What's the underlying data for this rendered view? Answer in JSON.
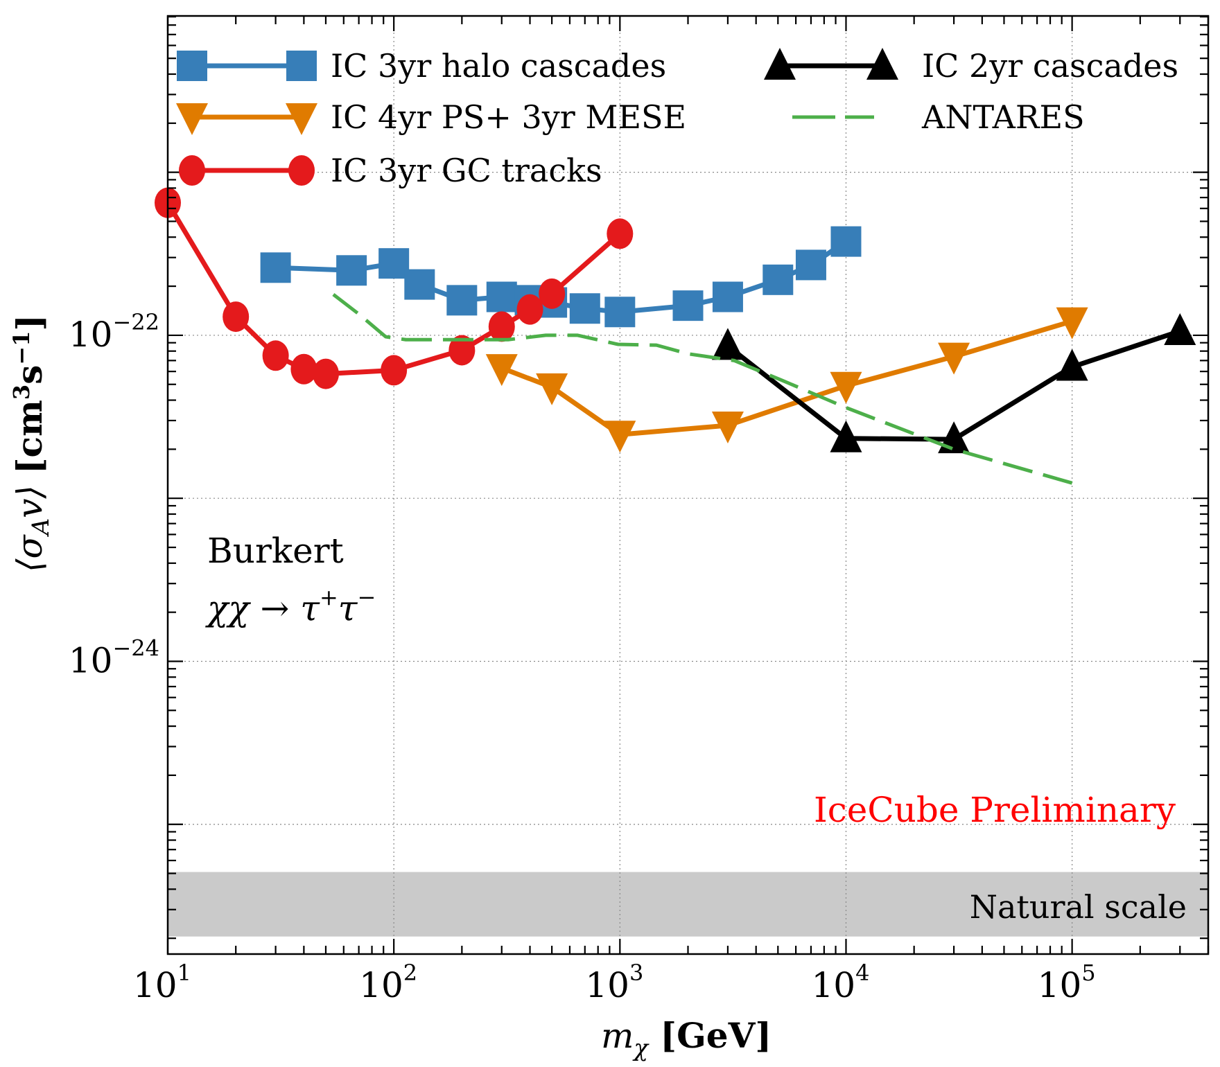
{
  "chart_data": {
    "type": "line",
    "title": "",
    "xlabel": "m_χ [GeV]",
    "xlabel_parts": {
      "var": "m",
      "sub": "χ",
      "unit": " [GeV]"
    },
    "ylabel": "⟨σ_A v⟩ [cm³s⁻¹]",
    "ylabel_parts": {
      "open": "⟨σ",
      "sub": "A",
      "mid": "v⟩ ",
      "unit": "[cm",
      "unit_sup1": "3",
      "unit_mid": "s",
      "unit_sup2": "−1",
      "close": "]"
    },
    "xscale": "log",
    "yscale": "log",
    "xlim": [
      10,
      400000
    ],
    "ylim": [
      1.6e-26,
      9.1e-21
    ],
    "grid": true,
    "x_ticks": [
      {
        "value": 10,
        "base": "10",
        "exp": "1"
      },
      {
        "value": 100,
        "base": "10",
        "exp": "2"
      },
      {
        "value": 1000,
        "base": "10",
        "exp": "3"
      },
      {
        "value": 10000,
        "base": "10",
        "exp": "4"
      },
      {
        "value": 100000,
        "base": "10",
        "exp": "5"
      }
    ],
    "y_ticks": [
      {
        "value": 1e-22,
        "base": "10",
        "exp": "−22"
      },
      {
        "value": 1e-24,
        "base": "10",
        "exp": "−24"
      }
    ],
    "y_grid_values": [
      1e-21,
      1e-22,
      1e-23,
      1e-24,
      1e-25
    ],
    "x_grid_values": [
      100,
      1000,
      10000,
      100000
    ],
    "legend": {
      "placement": "top",
      "columns": 2
    },
    "series": [
      {
        "name": "IC 3yr halo cascades",
        "color": "#377eb8",
        "marker": "square",
        "linestyle": "solid",
        "legend_col": 0,
        "legend_row": 0,
        "x": [
          30,
          65,
          100,
          130,
          200,
          300,
          400,
          500,
          700,
          1000,
          2000,
          3000,
          5000,
          7000,
          10000
        ],
        "y": [
          2.6e-22,
          2.5e-22,
          2.76e-22,
          2.05e-22,
          1.64e-22,
          1.72e-22,
          1.64e-22,
          1.59e-22,
          1.46e-22,
          1.39e-22,
          1.52e-22,
          1.72e-22,
          2.19e-22,
          2.7e-22,
          3.76e-22
        ]
      },
      {
        "name": "IC 4yr PS+ 3yr MESE",
        "color": "#e07b00",
        "marker": "triangle-down",
        "linestyle": "solid",
        "legend_col": 0,
        "legend_row": 1,
        "x": [
          300,
          500,
          1000,
          3000,
          10000,
          30000,
          100000
        ],
        "y": [
          6.3e-23,
          4.8e-23,
          2.46e-23,
          2.8e-23,
          4.9e-23,
          7.4e-23,
          1.22e-22
        ]
      },
      {
        "name": "IC 3yr GC tracks",
        "color": "#e41a1c",
        "marker": "circle",
        "linestyle": "solid",
        "legend_col": 0,
        "legend_row": 2,
        "x": [
          10,
          20,
          30,
          40,
          50,
          100,
          200,
          300,
          400,
          500,
          1000
        ],
        "y": [
          6.5e-22,
          1.3e-22,
          7.5e-23,
          6.2e-23,
          5.8e-23,
          6.1e-23,
          8.1e-23,
          1.13e-22,
          1.44e-22,
          1.8e-22,
          4.2e-22
        ]
      },
      {
        "name": "IC 2yr cascades",
        "color": "#000000",
        "marker": "triangle-up",
        "linestyle": "solid",
        "legend_col": 1,
        "legend_row": 0,
        "x": [
          3000,
          10000,
          30000,
          100000,
          300000
        ],
        "y": [
          8.6e-23,
          2.33e-23,
          2.3e-23,
          6.4e-23,
          1.06e-22
        ]
      },
      {
        "name": "ANTARES",
        "color": "#4daf4a",
        "marker": "none",
        "linestyle": "dashed",
        "legend_col": 1,
        "legend_row": 1,
        "x": [
          54,
          70,
          92,
          113,
          200,
          320,
          470,
          650,
          980,
          1450,
          2000,
          3200,
          5200,
          10000,
          30000,
          100000
        ],
        "y": [
          1.78e-22,
          1.35e-22,
          9.8e-23,
          9.4e-23,
          9.4e-23,
          9.4e-23,
          1e-22,
          1e-22,
          8.8e-23,
          8.7e-23,
          7.7e-23,
          7e-23,
          5.3e-23,
          3.6e-23,
          2e-23,
          1.24e-23
        ]
      }
    ],
    "band": {
      "label": "Natural scale",
      "y_range": [
        2.05e-26,
        5.1e-26
      ],
      "color": "#cacaca"
    },
    "annotations": {
      "profile": "Burkert",
      "channel": {
        "lhs": "χχ → τ",
        "sup1": "+",
        "mid": "τ",
        "sup2": "−"
      },
      "preliminary": {
        "text": "IceCube Preliminary",
        "color": "#ff0000"
      }
    }
  }
}
